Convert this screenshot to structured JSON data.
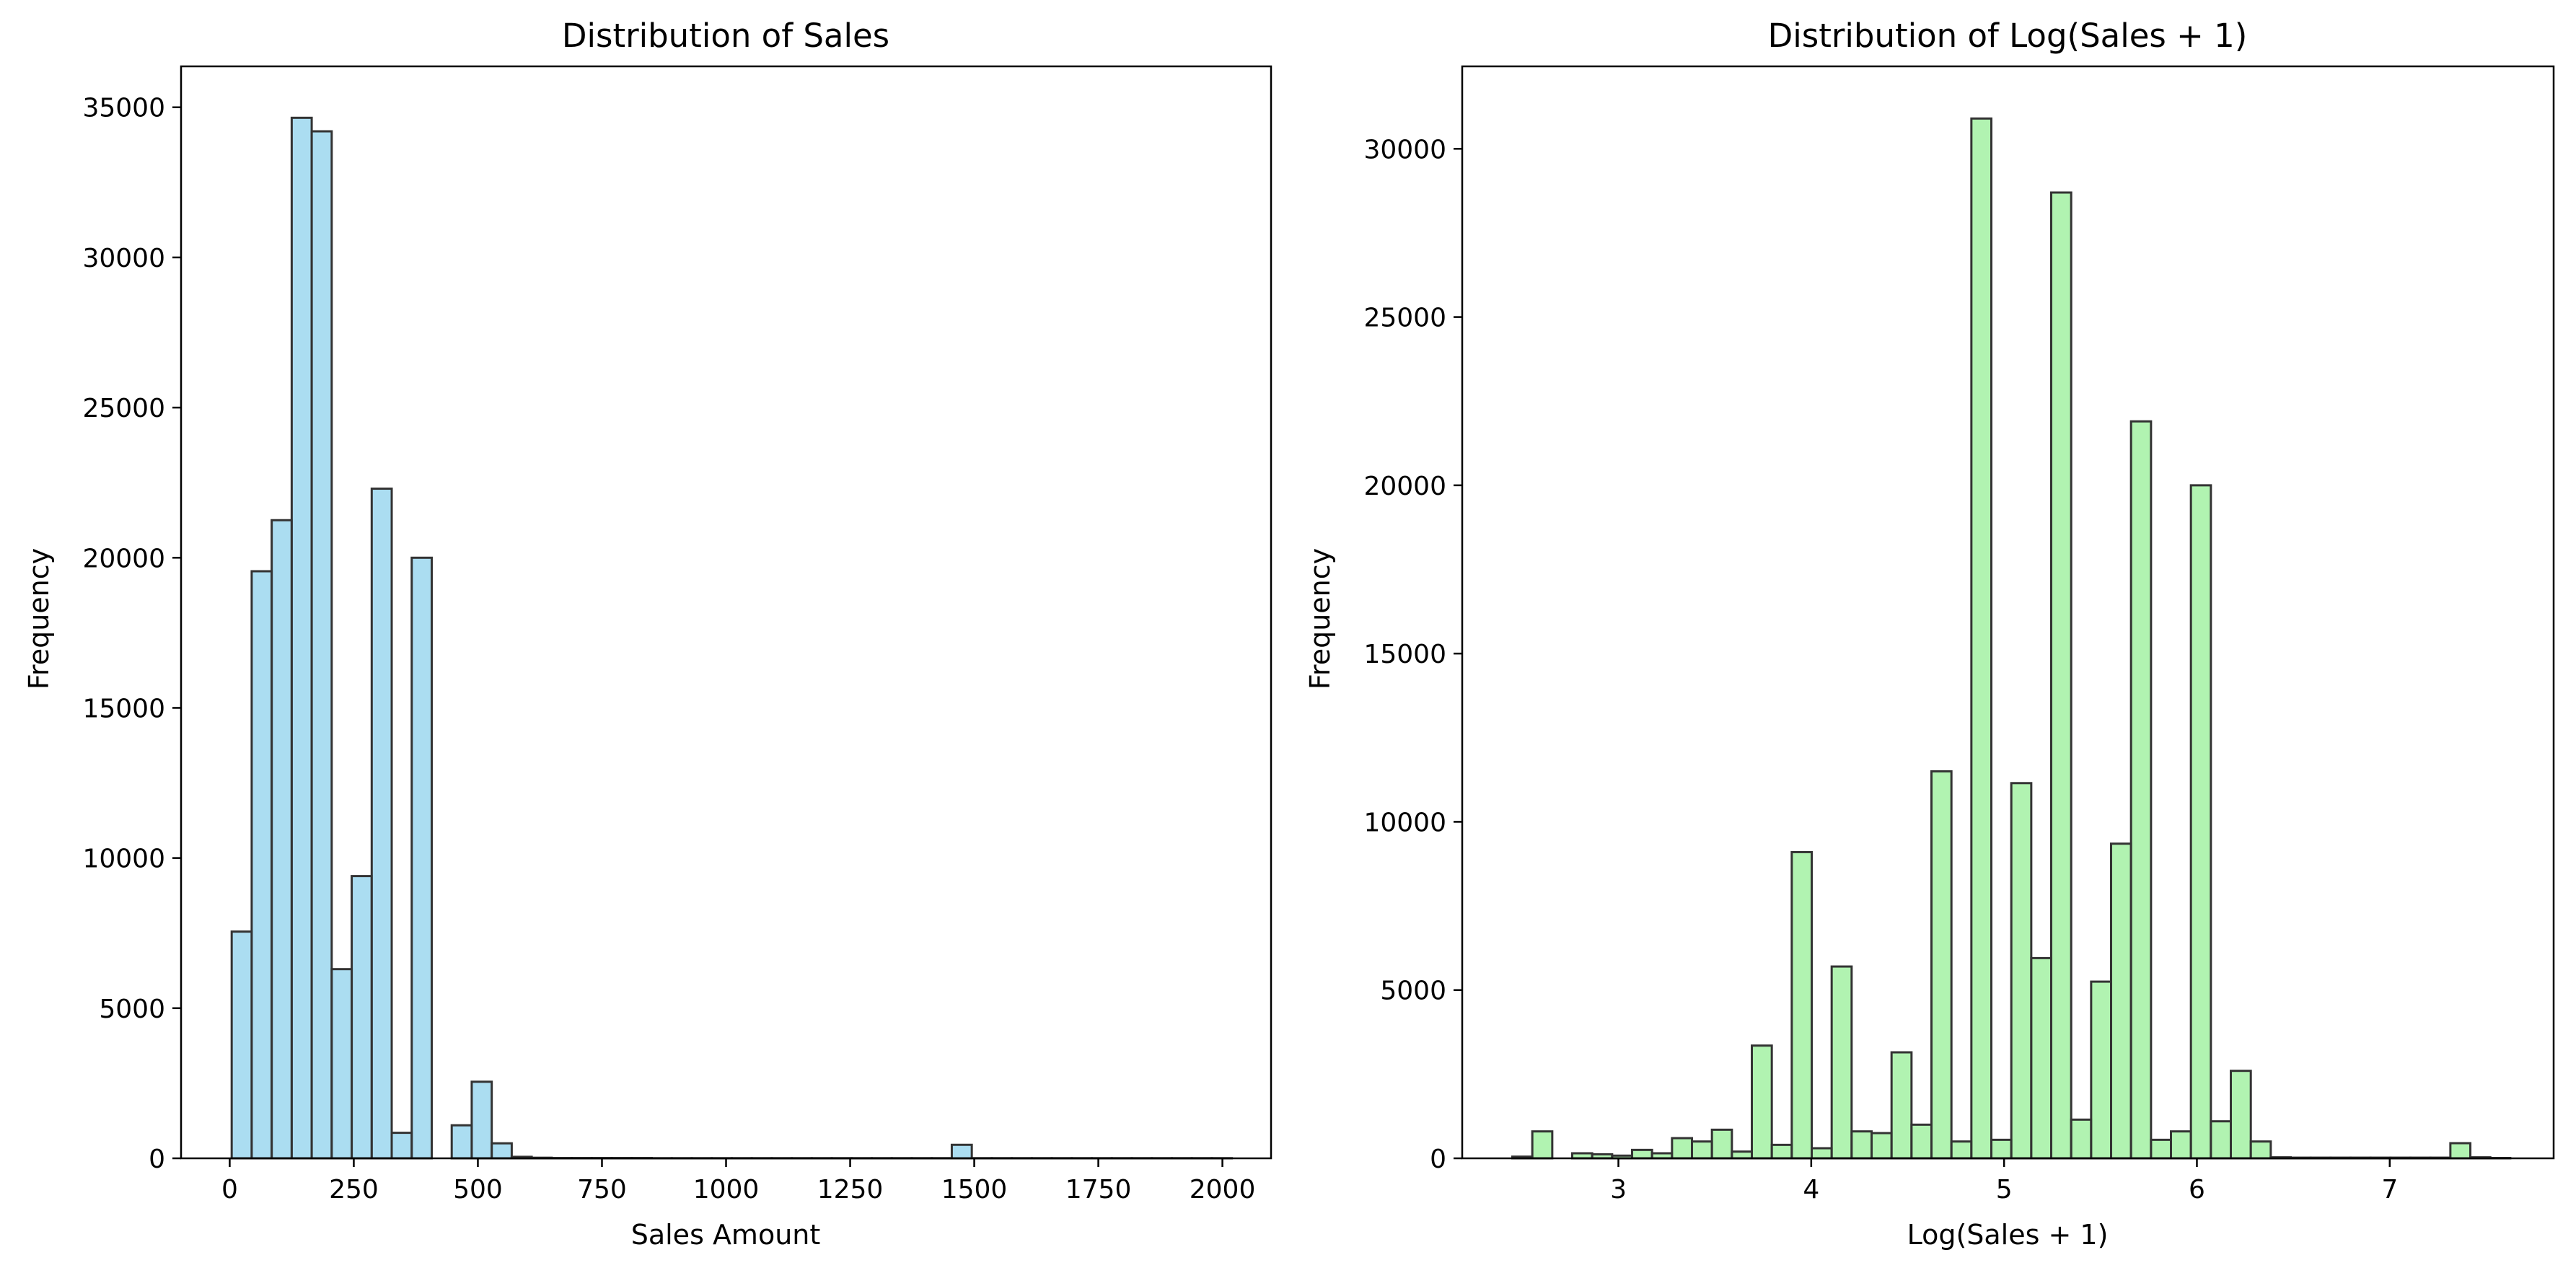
{
  "figure": {
    "charts": [
      {
        "type": "histogram",
        "title": "Distribution of Sales",
        "xlabel": "Sales Amount",
        "ylabel": "Frequency",
        "bin_width": 40.3,
        "bin_edges_start": 4.0,
        "values": [
          7550,
          19550,
          21250,
          34650,
          34200,
          6300,
          9400,
          22300,
          850,
          20000,
          0,
          1100,
          2550,
          500,
          50,
          20,
          10,
          10,
          10,
          10,
          10,
          5,
          5,
          5,
          5,
          5,
          5,
          5,
          5,
          5,
          5,
          5,
          5,
          5,
          5,
          5,
          450,
          5,
          5,
          5,
          5,
          5,
          5,
          5,
          5,
          5,
          5,
          5,
          5,
          5
        ],
        "xlim": [
          -98,
          2098
        ],
        "ylim": [
          0,
          36363
        ],
        "xticks": [
          0,
          250,
          500,
          750,
          1000,
          1250,
          1500,
          1750,
          2000
        ],
        "xtick_labels": [
          "0",
          "250",
          "500",
          "750",
          "1000",
          "1250",
          "1500",
          "1750",
          "2000"
        ],
        "yticks": [
          0,
          5000,
          10000,
          15000,
          20000,
          25000,
          30000,
          35000
        ],
        "ytick_labels": [
          "0",
          "5000",
          "10000",
          "15000",
          "20000",
          "25000",
          "30000",
          "35000"
        ],
        "color": "#87ceeb",
        "edge_color": "#333333",
        "alpha": 0.7
      },
      {
        "type": "histogram",
        "title": "Distribution of Log(Sales + 1)",
        "xlabel": "Log(Sales + 1)",
        "ylabel": "Frequency",
        "bin_width": 0.1035,
        "bin_edges_start": 2.45,
        "values": [
          50,
          800,
          0,
          150,
          120,
          80,
          250,
          150,
          600,
          500,
          850,
          200,
          3350,
          400,
          9100,
          300,
          5700,
          800,
          750,
          3150,
          1000,
          11500,
          500,
          30900,
          550,
          11150,
          5950,
          28700,
          1150,
          5250,
          9350,
          21900,
          550,
          800,
          20000,
          1100,
          2600,
          500,
          30,
          20,
          20,
          20,
          20,
          20,
          20,
          20,
          20,
          450,
          30,
          10
        ],
        "xlim": [
          2.19,
          7.85
        ],
        "ylim": [
          0,
          32450
        ],
        "xticks": [
          3,
          4,
          5,
          6,
          7
        ],
        "xtick_labels": [
          "3",
          "4",
          "5",
          "6",
          "7"
        ],
        "yticks": [
          0,
          5000,
          10000,
          15000,
          20000,
          25000,
          30000
        ],
        "ytick_labels": [
          "0",
          "5000",
          "10000",
          "15000",
          "20000",
          "25000",
          "30000"
        ],
        "color": "#90ee90",
        "edge_color": "#333333",
        "alpha": 0.7
      }
    ]
  },
  "chart_data": [
    {
      "type": "bar",
      "title": "Distribution of Sales",
      "xlabel": "Sales Amount",
      "ylabel": "Frequency",
      "xlim": [
        -98,
        2098
      ],
      "ylim": [
        0,
        36363
      ],
      "grid": false,
      "bins_start": 4.0,
      "bin_width": 40.3,
      "values": [
        7550,
        19550,
        21250,
        34650,
        34200,
        6300,
        9400,
        22300,
        850,
        20000,
        0,
        1100,
        2550,
        500,
        50,
        20,
        10,
        10,
        10,
        10,
        10,
        5,
        5,
        5,
        5,
        5,
        5,
        5,
        5,
        5,
        5,
        5,
        5,
        5,
        5,
        5,
        450,
        5,
        5,
        5,
        5,
        5,
        5,
        5,
        5,
        5,
        5,
        5,
        5,
        5
      ]
    },
    {
      "type": "bar",
      "title": "Distribution of Log(Sales + 1)",
      "xlabel": "Log(Sales + 1)",
      "ylabel": "Frequency",
      "xlim": [
        2.19,
        7.85
      ],
      "ylim": [
        0,
        32450
      ],
      "grid": false,
      "bins_start": 2.45,
      "bin_width": 0.1035,
      "values": [
        50,
        800,
        0,
        150,
        120,
        80,
        250,
        150,
        600,
        500,
        850,
        200,
        3350,
        400,
        9100,
        300,
        5700,
        800,
        750,
        3150,
        1000,
        11500,
        500,
        30900,
        550,
        11150,
        5950,
        28700,
        1150,
        5250,
        9350,
        21900,
        550,
        800,
        20000,
        1100,
        2600,
        500,
        30,
        20,
        20,
        20,
        20,
        20,
        20,
        20,
        20,
        450,
        30,
        10
      ]
    }
  ]
}
